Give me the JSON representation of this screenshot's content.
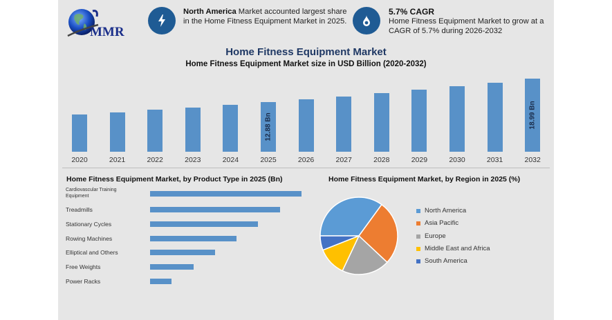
{
  "header": {
    "logo_text": "MMR",
    "highlight1": {
      "icon": "lightning-bolt-icon",
      "bold": "North America",
      "text": " Market accounted largest share in the Home Fitness Equipment Market in 2025."
    },
    "highlight2": {
      "icon": "water-drop-icon",
      "bold": "5.7% CAGR",
      "text": "Home Fitness Equipment Market to grow at a CAGR of 5.7% during 2026-2032"
    }
  },
  "main": {
    "title": "Home Fitness Equipment Market",
    "subtitle": "Home Fitness Equipment Market size in USD Billion (2020-2032)"
  },
  "colors": {
    "bar": "#5891c8",
    "icon_circle": "#1f5b94",
    "title": "#1f3864",
    "panel": "#e6e6e6"
  },
  "chart_data": [
    {
      "type": "bar",
      "title": "Home Fitness Equipment Market size in USD Billion (2020-2032)",
      "xlabel": "",
      "ylabel": "USD Billion",
      "categories": [
        "2020",
        "2021",
        "2022",
        "2023",
        "2024",
        "2025",
        "2026",
        "2027",
        "2028",
        "2029",
        "2030",
        "2031",
        "2032"
      ],
      "values": [
        9.7,
        10.3,
        10.9,
        11.5,
        12.2,
        12.88,
        13.6,
        14.4,
        15.2,
        16.1,
        17.0,
        18.0,
        18.99
      ],
      "data_labels": {
        "2025": "12.88 Bn",
        "2032": "18.99 Bn"
      },
      "grid": false
    },
    {
      "type": "bar",
      "orientation": "horizontal",
      "title": "Home Fitness Equipment Market, by Product Type in 2025 (Bn)",
      "categories": [
        "Cardiovascular Training Equipment",
        "Treadmills",
        "Stationary Cycles",
        "Rowing Machines",
        "Elliptical and Others",
        "Free Weights",
        "Power Racks"
      ],
      "values": [
        7.0,
        6.0,
        5.0,
        4.0,
        3.0,
        2.0,
        1.0
      ],
      "grid": false
    },
    {
      "type": "pie",
      "title": "Home Fitness Equipment Market, by Region in 2025 (%)",
      "categories": [
        "North America",
        "Asia Pacific",
        "Europe",
        "Middle East and Africa",
        "South America"
      ],
      "values": [
        35,
        27,
        20,
        12,
        6
      ],
      "colors": [
        "#5b9bd5",
        "#ed7d31",
        "#a5a5a5",
        "#ffc000",
        "#4472c4"
      ],
      "legend_position": "right"
    }
  ]
}
